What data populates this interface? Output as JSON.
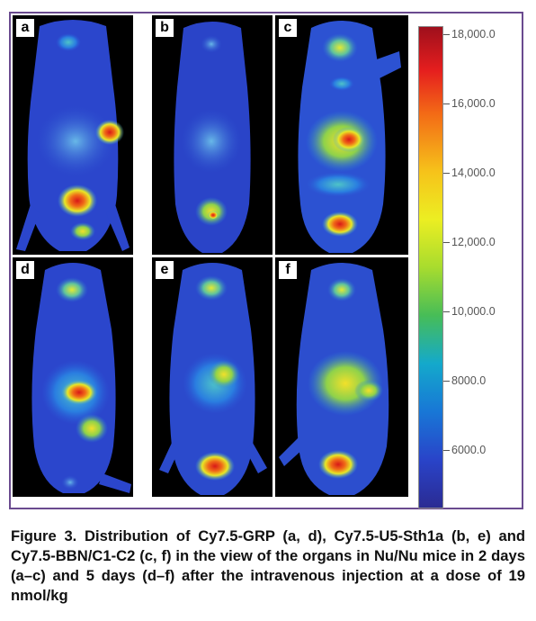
{
  "figure": {
    "panels": [
      {
        "label": "a"
      },
      {
        "label": "b"
      },
      {
        "label": "c"
      },
      {
        "label": "d"
      },
      {
        "label": "e"
      },
      {
        "label": "f"
      }
    ],
    "colorbar": {
      "ticks": [
        "18,000.0",
        "16,000.0",
        "14,000.0",
        "12,000.0",
        "10,000.0",
        "8000.0",
        "6000.0"
      ],
      "colors": [
        "#9e0f1c",
        "#e51e1e",
        "#f36a16",
        "#ecee22",
        "#47bd57",
        "#1877d6",
        "#2b2b93"
      ]
    },
    "caption": "Figure 3. Distribution of Cy7.5-GRP (a, d), Cy7.5-U5-Sth1a (b, e) and Cy7.5-BBN/C1-C2 (c, f) in the view of the organs in Nu/Nu mice in 2 days (a–c) and 5 days (d–f) after the intravenous injection at a dose of 19 nmol/kg"
  }
}
